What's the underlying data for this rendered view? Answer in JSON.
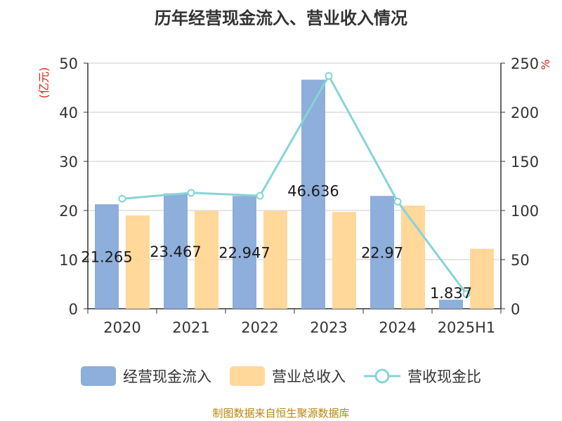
{
  "chart_data": {
    "type": "bar",
    "title": "历年经营现金流入、营业收入情况",
    "categories": [
      "2020",
      "2021",
      "2022",
      "2023",
      "2024",
      "2025H1"
    ],
    "series": [
      {
        "name": "经营现金流入",
        "type": "bar",
        "axis": "left",
        "color": "#8eaedb",
        "values": [
          21.265,
          23.467,
          22.947,
          46.636,
          22.97,
          1.837
        ],
        "labels": [
          "21.265",
          "23.467",
          "22.947",
          "46.636",
          "22.97",
          "1.837"
        ]
      },
      {
        "name": "营业总收入",
        "type": "bar",
        "axis": "left",
        "color": "#ffd89a",
        "values": [
          19.0,
          19.9,
          19.9,
          19.7,
          21.0,
          12.2
        ]
      },
      {
        "name": "营收现金比",
        "type": "line",
        "axis": "right",
        "color": "#86d4d7",
        "values": [
          112,
          118,
          115,
          237,
          109,
          15
        ]
      }
    ],
    "ylabel_left": "(亿元)",
    "ylabel_right": "%",
    "ylim_left": [
      0,
      50
    ],
    "ylim_right": [
      0,
      250
    ],
    "yticks_left": [
      "0",
      "10",
      "20",
      "30",
      "40",
      "50"
    ],
    "yticks_right": [
      "0",
      "50",
      "100",
      "150",
      "200",
      "250"
    ],
    "grid": true,
    "legend_position": "bottom"
  },
  "source_text": "制图数据来自恒生聚源数据库"
}
